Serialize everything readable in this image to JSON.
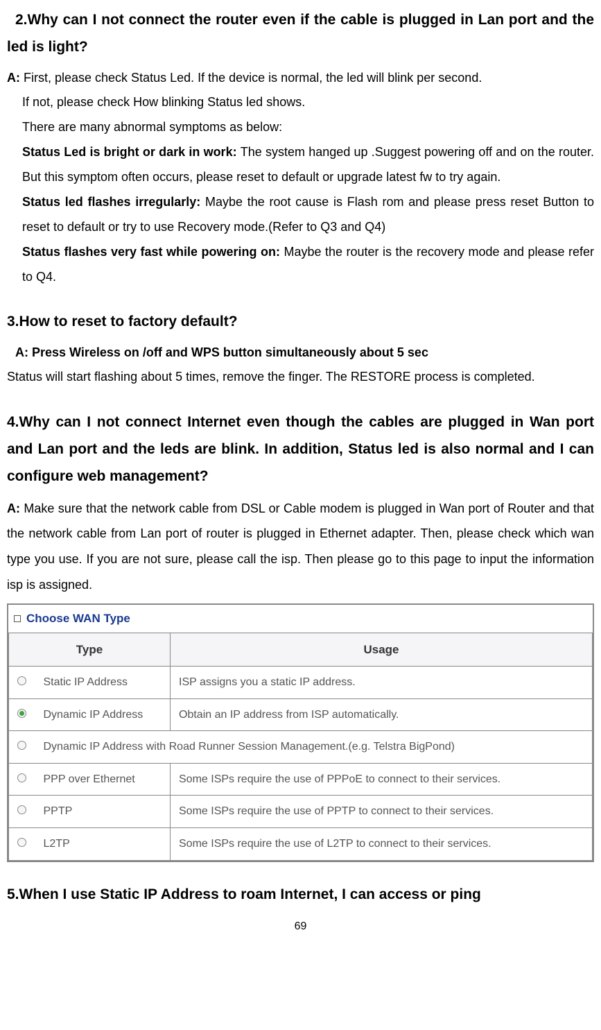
{
  "q2": {
    "heading": "2.Why can I not connect the router even if the cable is plugged in Lan port and the led is light?",
    "a_prefix": "A: ",
    "a_line1": "First, please check Status Led. If the device is normal, the led will blink per second.",
    "a_line2": "If not, please check How blinking Status led shows.",
    "a_line3": "There are many abnormal symptoms as below:",
    "sym1_bold": "Status Led is bright or dark in work: ",
    "sym1_text": "The system hanged up .Suggest powering off and on the router. But this symptom often occurs, please reset to default or upgrade latest fw to try again.",
    "sym2_bold": "Status led flashes irregularly: ",
    "sym2_text": "Maybe the root cause is Flash rom and please press reset Button to reset to default or try to use Recovery mode.(Refer to Q3 and Q4)",
    "sym3_bold": "Status flashes very fast while powering on: ",
    "sym3_text": "Maybe the router is the recovery mode and please refer to Q4."
  },
  "q3": {
    "heading": "3.How to reset to factory default?",
    "a_prefix": "A: ",
    "a_bold": "Press Wireless on /off and WPS button simultaneously about 5 sec",
    "a_para": "Status will start flashing about 5 times, remove the finger. The RESTORE process is completed."
  },
  "q4": {
    "heading": "4.Why can I not connect Internet even though the cables are plugged in Wan port and Lan port and the leds are blink. In addition, Status led is also normal and I can configure web management?",
    "a_prefix": "A: ",
    "a_text": "Make sure that the network cable from DSL or Cable modem is plugged in Wan port of Router and that the network cable from Lan port of router is plugged in Ethernet adapter. Then, please check which wan type you use. If you are not sure, please call the isp. Then please go to this page to input the information isp is assigned."
  },
  "wan": {
    "panel_title": "Choose WAN Type",
    "header_type": "Type",
    "header_usage": "Usage",
    "panel_bg": "#ffffff",
    "border_color": "#888888",
    "header_bg": "#f5f5f7",
    "title_color": "#1b3a8f",
    "cell_text_color": "#555555",
    "rows": [
      {
        "selected": false,
        "type": "Static IP Address",
        "usage": "ISP assigns you a static IP address."
      },
      {
        "selected": true,
        "type": "Dynamic IP Address",
        "usage": "Obtain an IP address from ISP automatically."
      },
      {
        "selected": false,
        "full": true,
        "type": "Dynamic IP Address with Road Runner Session Management.(e.g. Telstra BigPond)"
      },
      {
        "selected": false,
        "type": "PPP over Ethernet",
        "usage": "Some ISPs require the use of PPPoE to connect to their services."
      },
      {
        "selected": false,
        "type": "PPTP",
        "usage": "Some ISPs require the use of PPTP to connect to their services."
      },
      {
        "selected": false,
        "type": "L2TP",
        "usage": "Some ISPs require the use of L2TP to connect to their services."
      }
    ]
  },
  "q5": {
    "heading": "5.When I use Static IP Address to roam Internet, I can access or ping"
  },
  "page_number": "69"
}
